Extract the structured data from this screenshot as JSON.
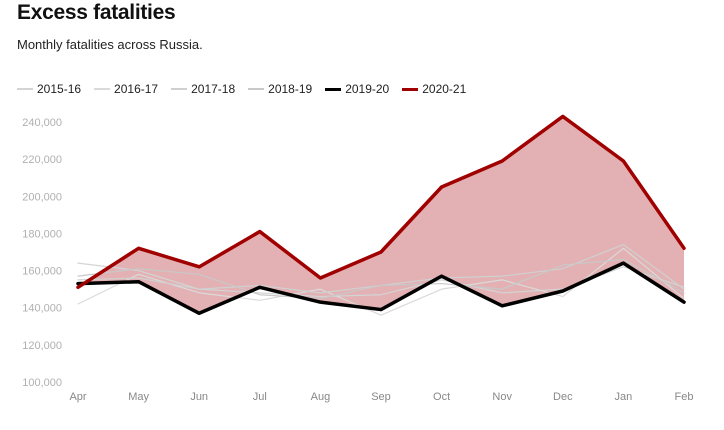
{
  "header": {
    "title": "Excess fatalities",
    "subtitle": "Monthly fatalities across Russia."
  },
  "chart_data": {
    "type": "line",
    "title": "Excess fatalities",
    "subtitle": "Monthly fatalities across Russia.",
    "categories": [
      "Apr",
      "May",
      "Jun",
      "Jul",
      "Aug",
      "Sep",
      "Oct",
      "Nov",
      "Dec",
      "Jan",
      "Feb"
    ],
    "ylim": [
      100000,
      250000
    ],
    "yticks": [
      100000,
      120000,
      140000,
      160000,
      180000,
      200000,
      220000,
      240000
    ],
    "ytick_labels": [
      "100,000",
      "120,000",
      "140,000",
      "160,000",
      "180,000",
      "200,000",
      "220,000",
      "240,000"
    ],
    "grid": false,
    "legend_position": "top-left",
    "shaded_area": {
      "between": [
        "2019-20",
        "2020-21"
      ],
      "color": "#e3b1b3"
    },
    "series": [
      {
        "name": "2015-16",
        "color": "#d4d4d4",
        "width": 1.2,
        "values": [
          164000,
          160000,
          150000,
          148000,
          146000,
          147000,
          155000,
          148000,
          150000,
          162000,
          151000
        ]
      },
      {
        "name": "2016-17",
        "color": "#dadada",
        "width": 1.2,
        "values": [
          142000,
          158000,
          148000,
          144000,
          150000,
          136000,
          150000,
          155000,
          146000,
          172000,
          145000
        ]
      },
      {
        "name": "2017-18",
        "color": "#d0d0d0",
        "width": 1.2,
        "values": [
          155000,
          156000,
          150000,
          152000,
          148000,
          152000,
          156000,
          157000,
          161000,
          174000,
          150000
        ]
      },
      {
        "name": "2018-19",
        "color": "#c8c8c8",
        "width": 1.2,
        "values": [
          157000,
          161000,
          158000,
          147000,
          145000,
          152000,
          153000,
          150000,
          163000,
          166000,
          148000
        ]
      },
      {
        "name": "2019-20",
        "color": "#000000",
        "width": 3.5,
        "values": [
          153000,
          154000,
          137000,
          151000,
          143000,
          139000,
          157000,
          141000,
          149000,
          164000,
          143000
        ]
      },
      {
        "name": "2020-21",
        "color": "#a00000",
        "width": 3.5,
        "values": [
          151000,
          172000,
          162000,
          181000,
          156000,
          170000,
          205000,
          219000,
          243000,
          219000,
          172000
        ]
      }
    ]
  }
}
